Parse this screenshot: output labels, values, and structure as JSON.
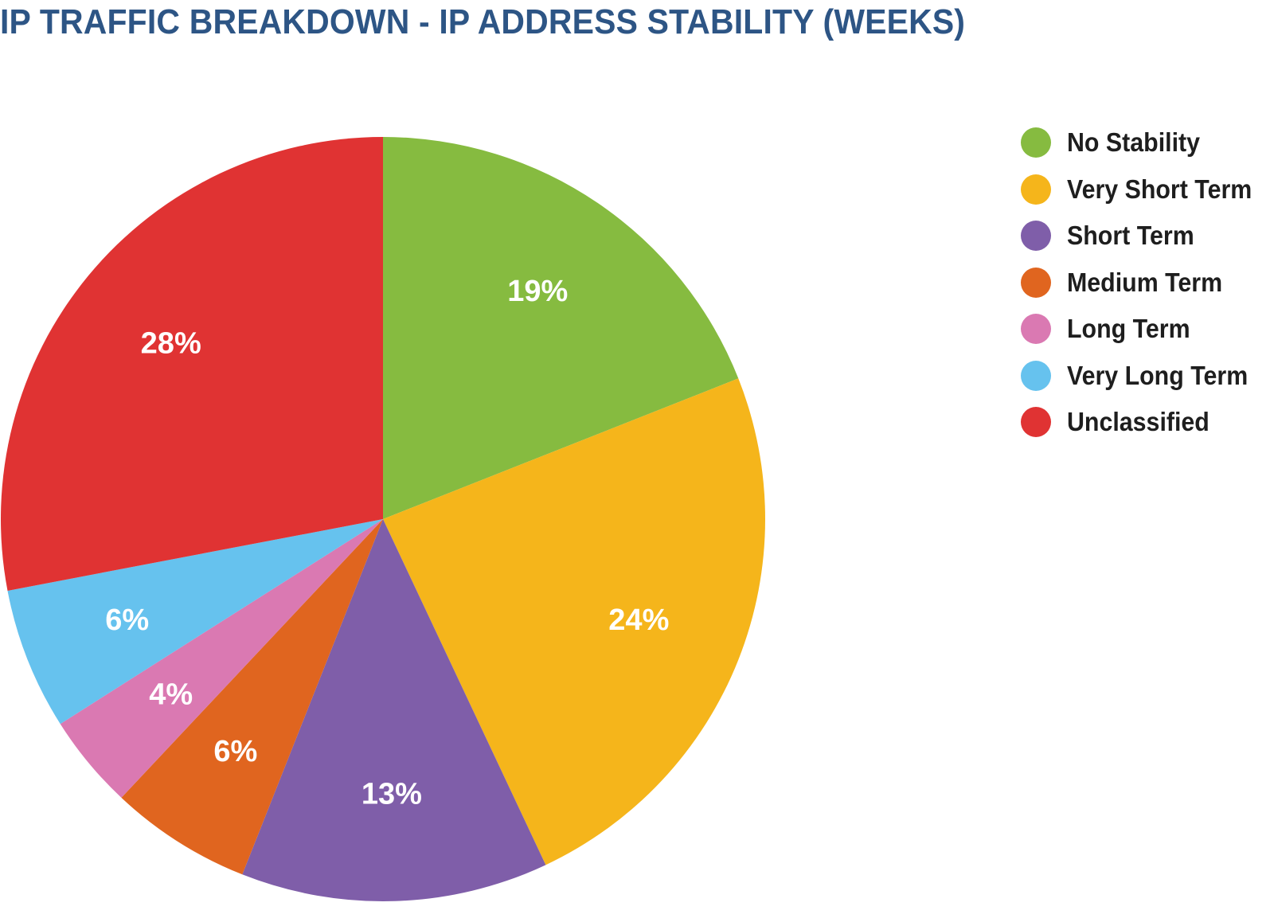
{
  "chart_data": {
    "type": "pie",
    "title": "IP TRAFFIC BREAKDOWN - IP ADDRESS STABILITY (WEEKS)",
    "legend_position": "right",
    "slices": [
      {
        "label": "No Stability",
        "value": 19,
        "value_label": "19%",
        "color": "#86bb40"
      },
      {
        "label": "Very Short Term",
        "value": 24,
        "value_label": "24%",
        "color": "#f5b51b"
      },
      {
        "label": "Short Term",
        "value": 13,
        "value_label": "13%",
        "color": "#7f5ea9"
      },
      {
        "label": "Medium Term",
        "value": 6,
        "value_label": "6%",
        "color": "#e0651f"
      },
      {
        "label": "Long Term",
        "value": 4,
        "value_label": "4%",
        "color": "#da79b2"
      },
      {
        "label": "Very Long Term",
        "value": 6,
        "value_label": "6%",
        "color": "#66c2ee"
      },
      {
        "label": "Unclassified",
        "value": 28,
        "value_label": "28%",
        "color": "#e03333"
      }
    ]
  }
}
